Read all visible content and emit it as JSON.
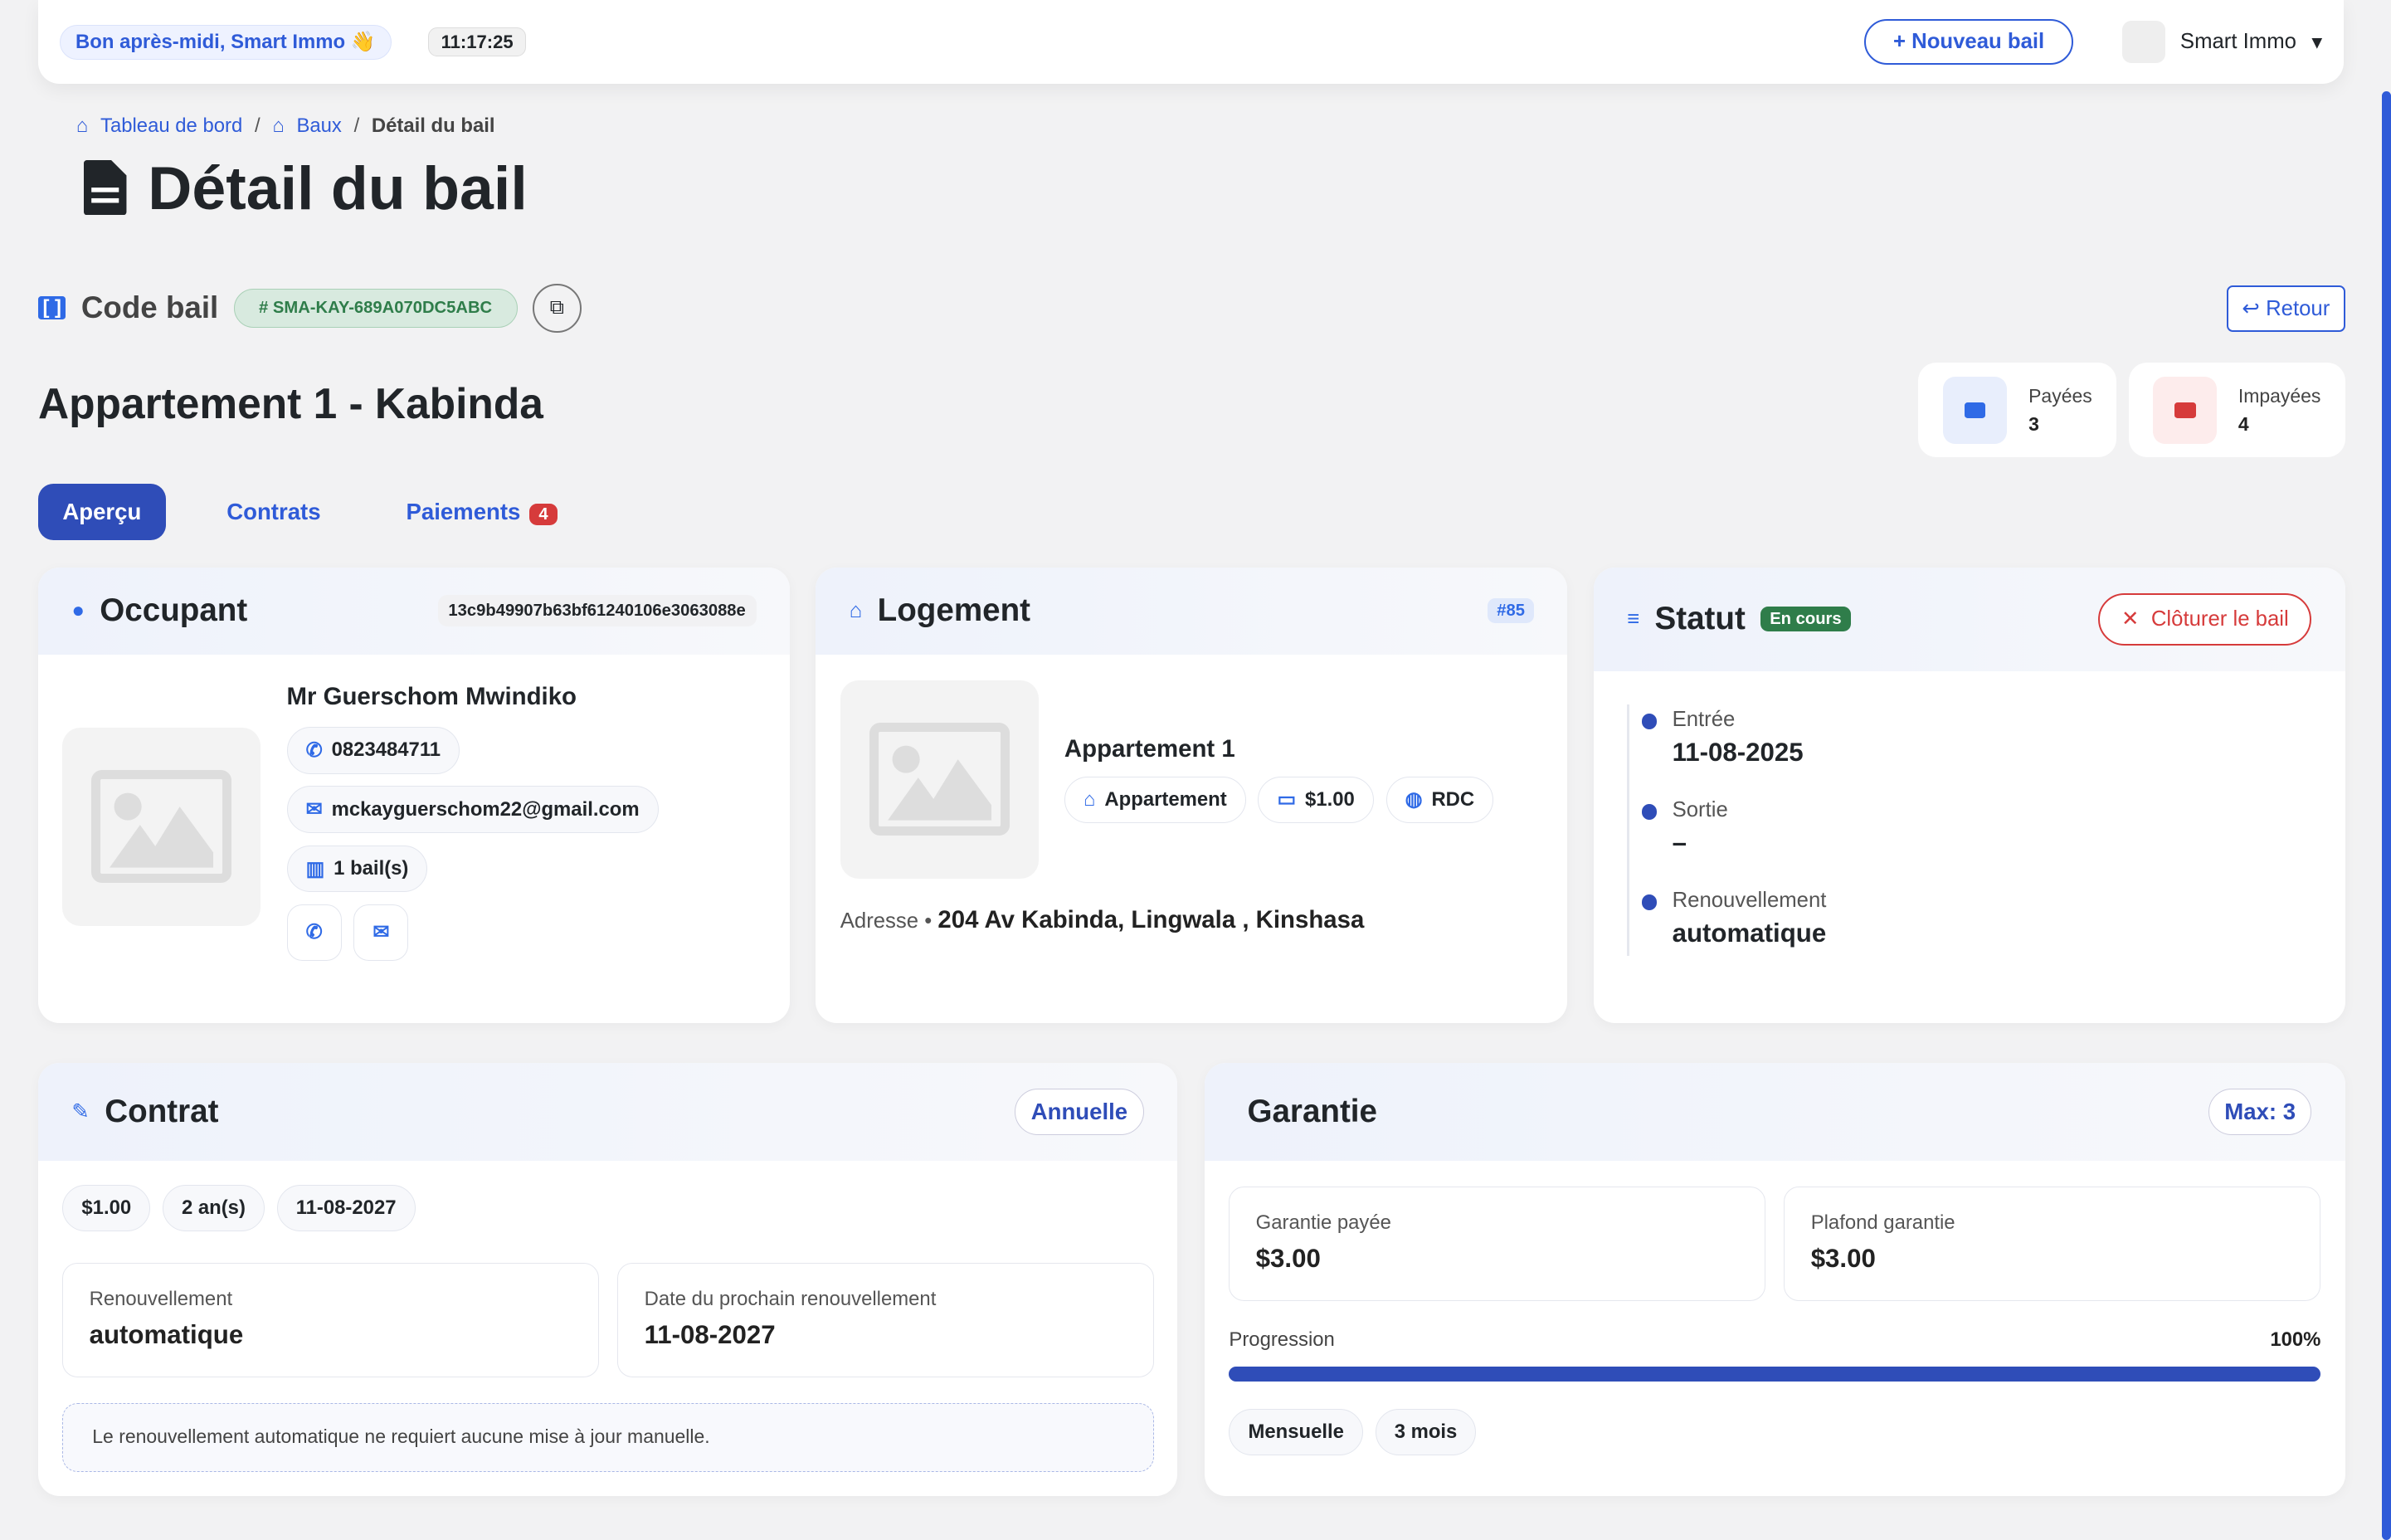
{
  "header": {
    "greeting": "Bon après-midi, Smart Immo 👋",
    "clock": "11:17:25",
    "new_lease": "Nouveau bail",
    "user": "Smart Immo"
  },
  "breadcrumb": [
    "Tableau de bord",
    "Baux",
    "Détail du bail"
  ],
  "page_title": "Détail du bail",
  "code": {
    "label": "Code bail",
    "value": "# SMA-KAY-689A070DC5ABC"
  },
  "back": "Retour",
  "property_title": "Appartement 1 - Kabinda",
  "stats": {
    "paid_label": "Payées",
    "paid": "3",
    "unpaid_label": "Impayées",
    "unpaid": "4"
  },
  "tabs": [
    {
      "label": "Aperçu"
    },
    {
      "label": "Contrats"
    },
    {
      "label": "Paiements",
      "count": "4"
    }
  ],
  "occupant": {
    "title": "Occupant",
    "id": "13c9b49907b63bf61240106e3063088e",
    "name": "Mr Guerschom Mwindiko",
    "phone": "0823484711",
    "email": "mckayguerschom22@gmail.com",
    "leases": "1 bail(s)"
  },
  "logement": {
    "title": "Logement",
    "badge": "#85",
    "name": "Appartement 1",
    "type": "Appartement",
    "price": "$1.00",
    "floor": "RDC",
    "address_label": "Adresse •",
    "address": "204 Av Kabinda, Lingwala , Kinshasa"
  },
  "statut": {
    "title": "Statut",
    "badge": "En cours",
    "close": "Clôturer le bail",
    "items": [
      {
        "label": "Entrée",
        "value": "11-08-2025"
      },
      {
        "label": "Sortie",
        "value": "–"
      },
      {
        "label": "Renouvellement",
        "value": "automatique"
      }
    ]
  },
  "contrat": {
    "title": "Contrat",
    "badge": "Annuelle",
    "chips": [
      "$1.00",
      "2 an(s)",
      "11-08-2027"
    ],
    "renew_label": "Renouvellement",
    "renew": "automatique",
    "next_label": "Date du prochain renouvellement",
    "next": "11-08-2027",
    "note": "Le renouvellement automatique ne requiert aucune mise à jour manuelle."
  },
  "garantie": {
    "title": "Garantie",
    "badge": "Max: 3",
    "paid_label": "Garantie payée",
    "paid": "$3.00",
    "cap_label": "Plafond garantie",
    "cap": "$3.00",
    "progress_label": "Progression",
    "progress": "100%",
    "progress_value": 100,
    "chips": [
      "Mensuelle",
      "3 mois"
    ]
  },
  "colors": {
    "accent": "#2f5bd8",
    "danger": "#d63b3b",
    "success": "#2f7d4a"
  }
}
